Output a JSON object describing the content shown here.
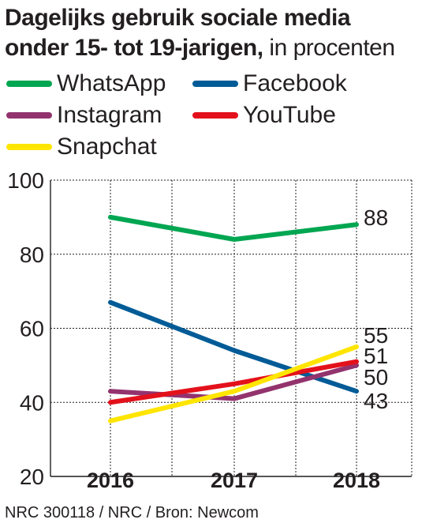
{
  "title": {
    "bold": "Dagelijks gebruik sociale media",
    "bold_line2": "onder 15- tot 19-jarigen,",
    "light": "in procenten"
  },
  "legend": [
    {
      "name": "WhatsApp",
      "color": "#00a651"
    },
    {
      "name": "Facebook",
      "color": "#005b96"
    },
    {
      "name": "Instagram",
      "color": "#93336e"
    },
    {
      "name": "YouTube",
      "color": "#e3111b"
    },
    {
      "name": "Snapchat",
      "color": "#ffe500"
    }
  ],
  "chart_data": {
    "type": "line",
    "title": "Dagelijks gebruik sociale media onder 15- tot 19-jarigen, in procenten",
    "x": [
      "2016",
      "2017",
      "2018"
    ],
    "ylim": [
      20,
      100
    ],
    "yticks": [
      20,
      40,
      60,
      80,
      100
    ],
    "grid": true,
    "series": [
      {
        "name": "WhatsApp",
        "values": [
          90,
          84,
          88
        ],
        "color": "#00a651",
        "end_label": "88"
      },
      {
        "name": "Facebook",
        "values": [
          67,
          54,
          43
        ],
        "color": "#005b96",
        "end_label": "43"
      },
      {
        "name": "Instagram",
        "values": [
          43,
          41,
          50
        ],
        "color": "#93336e",
        "end_label": "50"
      },
      {
        "name": "YouTube",
        "values": [
          40,
          45,
          51
        ],
        "color": "#e3111b",
        "end_label": "51"
      },
      {
        "name": "Snapchat",
        "values": [
          35,
          43,
          55
        ],
        "color": "#ffe500",
        "end_label": "55"
      }
    ]
  },
  "source": "NRC 300118 / NRC / Bron: Newcom"
}
